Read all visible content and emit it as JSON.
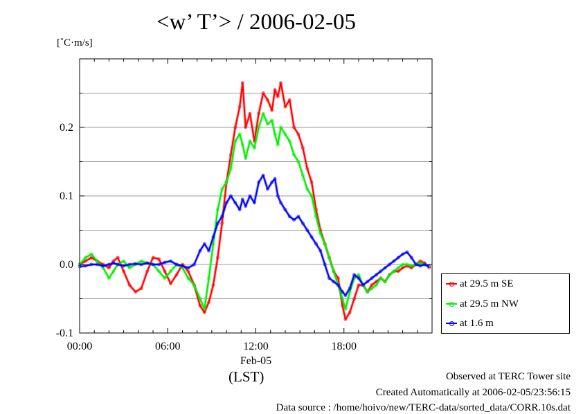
{
  "title": "<w’ T’> / 2006-02-05",
  "unit_label": "[˚C·m/s]",
  "time_label": "(LST)",
  "credits": [
    "Observed at TERC Tower site",
    "Created Automatically at 2006-02-05/23:56:15",
    "Data source : /home/hoivo/new/TERC-data/sorted_data/CORR.10s.dat"
  ],
  "chart_data": {
    "type": "line",
    "title": "<w’ T’> / 2006-02-05",
    "xlabel": "(LST)",
    "ylabel": "[˚C·m/s]",
    "xlim": [
      0,
      24
    ],
    "ylim": [
      -0.1,
      0.3
    ],
    "grid": true,
    "legend_position": "bottom-right outside",
    "x_ticks": [
      {
        "value": 0,
        "label": "00:00"
      },
      {
        "value": 6,
        "label": "06:00"
      },
      {
        "value": 12,
        "label": "12:00",
        "sublabel": "Feb-05"
      },
      {
        "value": 18,
        "label": "18:00"
      }
    ],
    "y_ticks": [
      {
        "value": -0.1,
        "label": "-0.1"
      },
      {
        "value": 0.0,
        "label": "0.0"
      },
      {
        "value": 0.1,
        "label": "0.1"
      },
      {
        "value": 0.2,
        "label": "0.2"
      }
    ],
    "series": [
      {
        "name": "at 29.5 m SE",
        "color": "#ff0000",
        "x": [
          0,
          0.4,
          0.8,
          1.2,
          1.6,
          2.0,
          2.3,
          2.6,
          3.0,
          3.4,
          3.8,
          4.2,
          4.6,
          5.0,
          5.4,
          5.8,
          6.2,
          6.6,
          7.0,
          7.4,
          7.8,
          8.2,
          8.5,
          8.8,
          9.1,
          9.4,
          9.7,
          10.0,
          10.3,
          10.6,
          10.9,
          11.1,
          11.3,
          11.6,
          11.9,
          12.2,
          12.5,
          12.8,
          13.1,
          13.3,
          13.5,
          13.7,
          14.0,
          14.3,
          14.6,
          14.9,
          15.2,
          15.5,
          15.8,
          16.1,
          16.4,
          16.7,
          17.0,
          17.3,
          17.6,
          17.9,
          18.1,
          18.4,
          18.7,
          19.0,
          19.3,
          19.6,
          19.9,
          20.2,
          20.5,
          20.8,
          21.1,
          21.4,
          21.7,
          22.0,
          22.3,
          22.6,
          22.9,
          23.2,
          23.5,
          23.8
        ],
        "y": [
          0.0,
          0.005,
          0.01,
          0.005,
          0.0,
          -0.005,
          0.005,
          0.01,
          -0.01,
          -0.03,
          -0.04,
          -0.035,
          -0.01,
          0.01,
          0.008,
          -0.01,
          -0.028,
          -0.015,
          0.0,
          -0.01,
          -0.03,
          -0.06,
          -0.07,
          -0.055,
          -0.03,
          0.01,
          0.06,
          0.12,
          0.16,
          0.2,
          0.23,
          0.265,
          0.2,
          0.22,
          0.18,
          0.22,
          0.25,
          0.24,
          0.225,
          0.255,
          0.245,
          0.265,
          0.23,
          0.24,
          0.2,
          0.19,
          0.17,
          0.14,
          0.12,
          0.08,
          0.05,
          0.03,
          0.01,
          -0.01,
          -0.02,
          -0.06,
          -0.08,
          -0.07,
          -0.05,
          -0.03,
          -0.03,
          -0.04,
          -0.03,
          -0.025,
          -0.02,
          -0.025,
          -0.015,
          -0.01,
          -0.01,
          -0.005,
          -0.002,
          -0.005,
          0.0,
          0.005,
          0.002,
          -0.005
        ]
      },
      {
        "name": "at 29.5 m NW",
        "color": "#00ee00",
        "x": [
          0,
          0.4,
          0.8,
          1.2,
          1.6,
          2.0,
          2.3,
          2.6,
          3.0,
          3.4,
          3.8,
          4.2,
          4.6,
          5.0,
          5.4,
          5.8,
          6.2,
          6.6,
          7.0,
          7.4,
          7.8,
          8.2,
          8.5,
          8.8,
          9.1,
          9.4,
          9.7,
          10.0,
          10.3,
          10.6,
          10.9,
          11.1,
          11.3,
          11.6,
          11.9,
          12.2,
          12.5,
          12.8,
          13.1,
          13.3,
          13.5,
          13.7,
          14.0,
          14.3,
          14.6,
          14.9,
          15.2,
          15.5,
          15.8,
          16.1,
          16.4,
          16.7,
          17.0,
          17.3,
          17.6,
          17.9,
          18.1,
          18.4,
          18.7,
          19.0,
          19.3,
          19.6,
          19.9,
          20.2,
          20.5,
          20.8,
          21.1,
          21.4,
          21.7,
          22.0,
          22.3,
          22.6,
          22.9,
          23.2,
          23.5,
          23.8
        ],
        "y": [
          0.0,
          0.01,
          0.015,
          0.005,
          -0.005,
          -0.02,
          -0.01,
          0.0,
          0.005,
          -0.005,
          0.0,
          0.005,
          0.002,
          0.0,
          -0.01,
          -0.02,
          -0.01,
          0.0,
          -0.005,
          -0.02,
          -0.03,
          -0.05,
          -0.065,
          -0.02,
          0.03,
          0.08,
          0.11,
          0.12,
          0.14,
          0.18,
          0.19,
          0.175,
          0.155,
          0.18,
          0.17,
          0.2,
          0.22,
          0.205,
          0.21,
          0.19,
          0.175,
          0.2,
          0.19,
          0.18,
          0.16,
          0.15,
          0.13,
          0.11,
          0.1,
          0.07,
          0.045,
          0.03,
          0.01,
          -0.01,
          -0.03,
          -0.05,
          -0.065,
          -0.04,
          -0.02,
          -0.015,
          -0.03,
          -0.04,
          -0.035,
          -0.03,
          -0.02,
          -0.025,
          -0.015,
          -0.01,
          -0.005,
          0.0,
          0.0,
          -0.002,
          0.0,
          0.002,
          0.0,
          -0.003
        ]
      },
      {
        "name": "at 1.6 m",
        "color": "#0000ff",
        "x": [
          0,
          0.4,
          0.8,
          1.2,
          1.6,
          2.0,
          2.3,
          2.6,
          3.0,
          3.4,
          3.8,
          4.2,
          4.6,
          5.0,
          5.4,
          5.8,
          6.2,
          6.6,
          7.0,
          7.4,
          7.8,
          8.2,
          8.5,
          8.8,
          9.1,
          9.4,
          9.7,
          10.0,
          10.3,
          10.6,
          10.9,
          11.1,
          11.3,
          11.6,
          11.9,
          12.2,
          12.5,
          12.8,
          13.1,
          13.3,
          13.5,
          13.7,
          14.0,
          14.3,
          14.6,
          14.9,
          15.2,
          15.5,
          15.8,
          16.1,
          16.4,
          16.7,
          17.0,
          17.3,
          17.6,
          17.9,
          18.1,
          18.4,
          18.7,
          19.0,
          19.3,
          19.6,
          19.9,
          20.2,
          20.5,
          20.8,
          21.1,
          21.4,
          21.7,
          22.0,
          22.3,
          22.6,
          22.9,
          23.2,
          23.5,
          23.8
        ],
        "y": [
          -0.003,
          -0.002,
          0.0,
          0.0,
          -0.002,
          0.0,
          0.002,
          0.0,
          -0.002,
          0.0,
          0.001,
          0.0,
          0.002,
          0.0,
          0.0,
          0.003,
          0.005,
          0.0,
          -0.002,
          -0.005,
          0.0,
          0.02,
          0.03,
          0.02,
          0.04,
          0.06,
          0.07,
          0.09,
          0.1,
          0.09,
          0.08,
          0.095,
          0.085,
          0.1,
          0.09,
          0.12,
          0.13,
          0.11,
          0.12,
          0.125,
          0.1,
          0.09,
          0.08,
          0.07,
          0.065,
          0.07,
          0.06,
          0.05,
          0.04,
          0.03,
          0.02,
          0.0,
          -0.02,
          -0.025,
          -0.03,
          -0.04,
          -0.045,
          -0.035,
          -0.015,
          -0.02,
          -0.03,
          -0.025,
          -0.02,
          -0.015,
          -0.01,
          -0.005,
          0.0,
          0.005,
          0.01,
          0.015,
          0.018,
          0.01,
          0.0,
          -0.002,
          0.0,
          -0.003
        ]
      }
    ]
  }
}
